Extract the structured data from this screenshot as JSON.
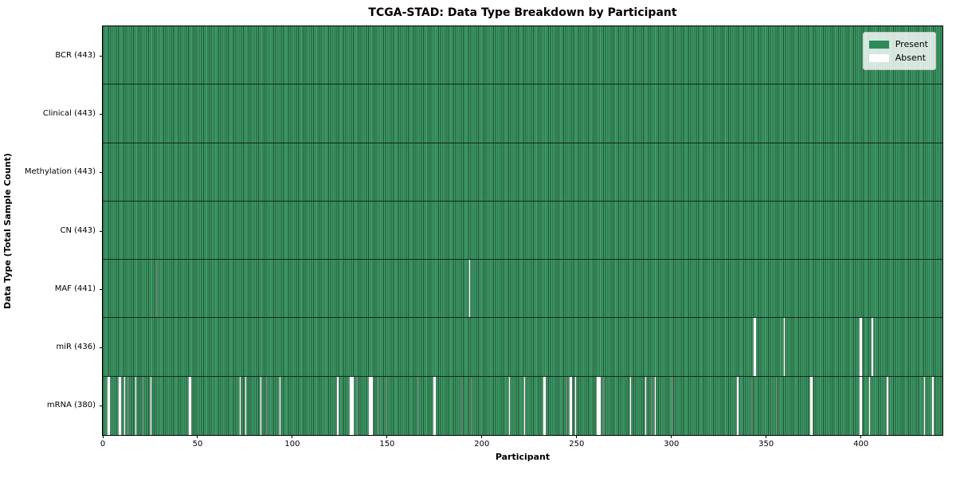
{
  "chart_data": {
    "type": "heatmap",
    "title": "TCGA-STAD: Data Type Breakdown by Participant",
    "xlabel": "Participant",
    "ylabel": "Data Type (Total Sample Count)",
    "n_participants": 443,
    "x_ticks": [
      0,
      50,
      100,
      150,
      200,
      250,
      300,
      350,
      400
    ],
    "grid": false,
    "legend_position": "upper right",
    "colors": {
      "present": "#2e8b57",
      "present_fill": "#3f9c69",
      "cell_edge": "#1f5233",
      "absent": "#ffffff"
    },
    "legend": {
      "items": [
        {
          "label": "Present",
          "color": "#2e8b57"
        },
        {
          "label": "Absent",
          "color": "#ffffff"
        }
      ]
    },
    "rows": [
      {
        "label": "BCR (443)",
        "data_type": "BCR",
        "present_count": 443,
        "absent_participants": []
      },
      {
        "label": "Clinical (443)",
        "data_type": "Clinical",
        "present_count": 443,
        "absent_participants": []
      },
      {
        "label": "Methylation (443)",
        "data_type": "Methylation",
        "present_count": 443,
        "absent_participants": []
      },
      {
        "label": "CN (443)",
        "data_type": "CN",
        "present_count": 443,
        "absent_participants": []
      },
      {
        "label": "MAF (441)",
        "data_type": "MAF",
        "present_count": 441,
        "absent_participants": [
          28,
          193
        ]
      },
      {
        "label": "miR (436)",
        "data_type": "miR",
        "present_count": 436,
        "absent_participants": [
          343,
          344,
          359,
          399,
          400,
          405,
          406
        ]
      },
      {
        "label": "mRNA (380)",
        "data_type": "mRNA",
        "present_count": 380,
        "absent_participants": [
          2,
          3,
          8,
          9,
          11,
          13,
          17,
          21,
          25,
          45,
          46,
          72,
          75,
          83,
          86,
          93,
          123,
          124,
          130,
          131,
          132,
          134,
          140,
          141,
          142,
          145,
          149,
          166,
          174,
          175,
          189,
          194,
          214,
          222,
          232,
          233,
          244,
          246,
          247,
          249,
          260,
          261,
          262,
          264,
          278,
          286,
          289,
          291,
          300,
          334,
          335,
          342,
          355,
          373,
          374,
          399,
          400,
          404,
          413,
          414,
          433,
          437,
          438
        ]
      }
    ]
  }
}
